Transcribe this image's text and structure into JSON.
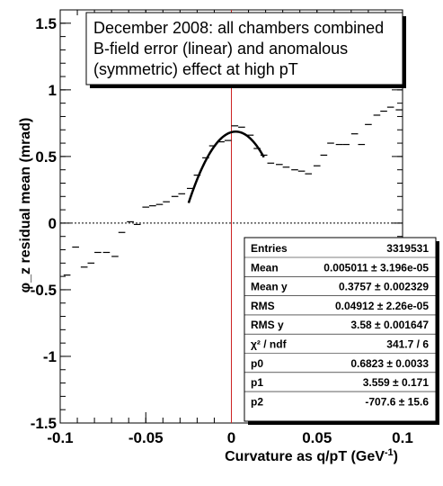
{
  "chart_data": {
    "type": "scatter",
    "title_lines": [
      "December 2008: all chambers combined",
      "B-field error (linear) and anomalous",
      "(symmetric) effect at high pT"
    ],
    "xlabel": "Curvature as q/pT (GeV",
    "xlabel_sup": "-1",
    "xlabel_end": ")",
    "ylabel": "φ_z residual mean (mrad)",
    "xlim": [
      -0.1,
      0.1
    ],
    "ylim": [
      -1.5,
      1.6
    ],
    "xticks": [
      -0.1,
      -0.05,
      0,
      0.05,
      0.1
    ],
    "xtick_labels": [
      "-0.1",
      "-0.05",
      "0",
      "0.05",
      "0.1"
    ],
    "yticks": [
      -1.5,
      -1,
      -0.5,
      0,
      0.5,
      1,
      1.5
    ],
    "ytick_labels": [
      "-1.5",
      "-1",
      "-0.5",
      "0",
      "0.5",
      "1",
      "1.5"
    ],
    "bin_half_width": 0.002,
    "points": [
      [
        -0.096,
        -0.39
      ],
      [
        -0.091,
        -0.18
      ],
      [
        -0.086,
        -0.33
      ],
      [
        -0.082,
        -0.3
      ],
      [
        -0.078,
        -0.22
      ],
      [
        -0.073,
        -0.22
      ],
      [
        -0.068,
        -0.25
      ],
      [
        -0.064,
        -0.07
      ],
      [
        -0.059,
        0.01
      ],
      [
        -0.055,
        -0.01
      ],
      [
        -0.05,
        0.12
      ],
      [
        -0.046,
        0.13
      ],
      [
        -0.042,
        0.14
      ],
      [
        -0.038,
        0.16
      ],
      [
        -0.033,
        0.2
      ],
      [
        -0.029,
        0.22
      ],
      [
        -0.024,
        0.26
      ],
      [
        -0.02,
        0.36
      ],
      [
        -0.015,
        0.49
      ],
      [
        -0.011,
        0.58
      ],
      [
        -0.006,
        0.61
      ],
      [
        -0.002,
        0.62
      ],
      [
        0.002,
        0.73
      ],
      [
        0.006,
        0.72
      ],
      [
        0.011,
        0.66
      ],
      [
        0.015,
        0.56
      ],
      [
        0.019,
        0.51
      ],
      [
        0.023,
        0.45
      ],
      [
        0.028,
        0.44
      ],
      [
        0.032,
        0.42
      ],
      [
        0.037,
        0.4
      ],
      [
        0.041,
        0.39
      ],
      [
        0.045,
        0.37
      ],
      [
        0.05,
        0.43
      ],
      [
        0.054,
        0.51
      ],
      [
        0.058,
        0.6
      ],
      [
        0.063,
        0.59
      ],
      [
        0.067,
        0.59
      ],
      [
        0.072,
        0.67
      ],
      [
        0.076,
        0.59
      ],
      [
        0.08,
        0.74
      ],
      [
        0.085,
        0.81
      ],
      [
        0.089,
        0.84
      ],
      [
        0.093,
        0.87
      ],
      [
        0.098,
        0.85
      ]
    ],
    "fit": {
      "p0": 0.6823,
      "p1": 3.559,
      "p2": -707.6,
      "xmin": -0.025,
      "xmax": 0.019
    },
    "zero_line_y": 0,
    "zero_line_x": 0,
    "colors": {
      "axis": "#000000",
      "points": "#000000",
      "fit": "#000000",
      "vertical_line": "#cc2222"
    }
  },
  "stats": [
    {
      "label": "Entries",
      "value": "3319531"
    },
    {
      "label": "Mean",
      "value": "0.005011 ± 3.196e-05"
    },
    {
      "label": "Mean y",
      "value": "0.3757 ± 0.002329"
    },
    {
      "label": "RMS",
      "value": "0.04912 ± 2.26e-05"
    },
    {
      "label": "RMS y",
      "value": "3.58 ± 0.001647"
    },
    {
      "label": "χ² / ndf",
      "value": "341.7 / 6"
    },
    {
      "label": "p0",
      "value": "0.6823 ± 0.0033"
    },
    {
      "label": "p1",
      "value": "3.559 ± 0.171"
    },
    {
      "label": "p2",
      "value": "-707.6 ± 15.6"
    }
  ]
}
